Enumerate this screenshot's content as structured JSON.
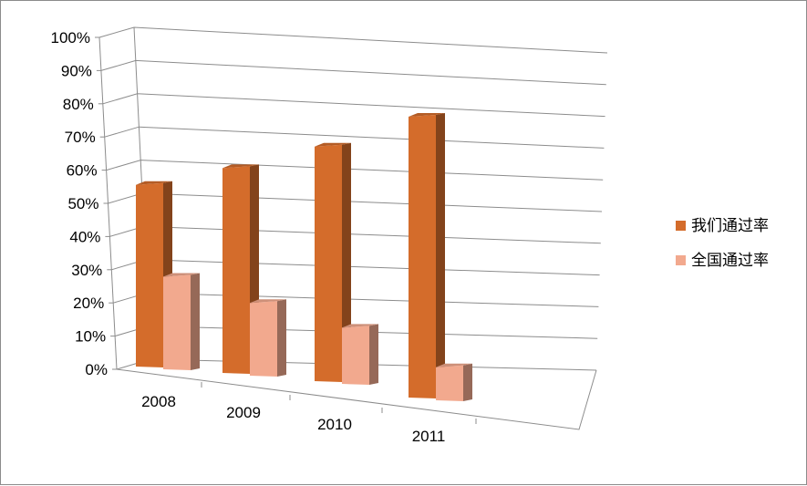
{
  "chart_data": {
    "type": "bar",
    "title": "",
    "xlabel": "",
    "ylabel": "",
    "categories": [
      "2008",
      "2009",
      "2010",
      "2011"
    ],
    "series": [
      {
        "name": "我们通过率",
        "values": [
          55,
          62,
          71,
          85
        ],
        "color": "#d46c2b"
      },
      {
        "name": "全国通过率",
        "values": [
          28,
          22,
          17,
          10
        ],
        "color": "#f2a98e"
      }
    ],
    "y_ticks": [
      "0%",
      "10%",
      "20%",
      "30%",
      "40%",
      "50%",
      "60%",
      "70%",
      "80%",
      "90%",
      "100%"
    ],
    "ylim": [
      0,
      100
    ],
    "grid": true,
    "legend_position": "right",
    "style": "3d-clustered-column"
  }
}
